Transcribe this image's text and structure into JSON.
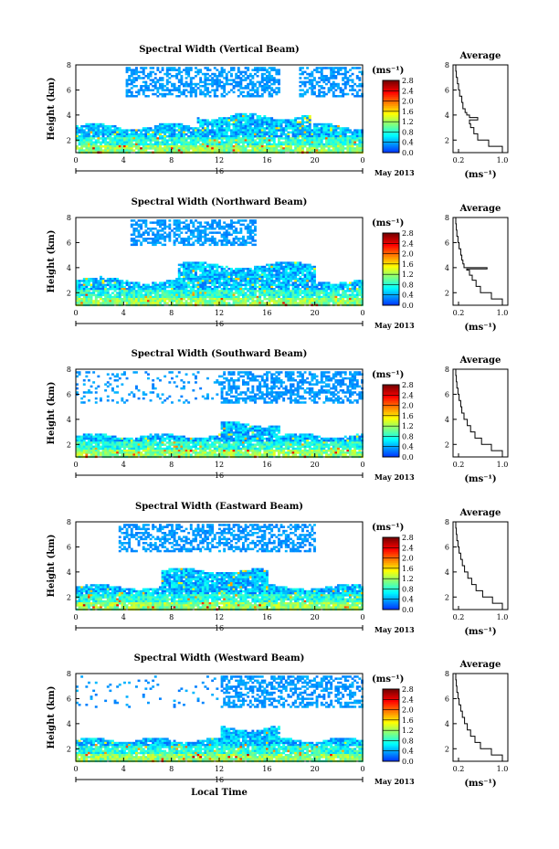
{
  "chart_data": [
    {
      "type": "heatmap",
      "title": "Spectral Width (Vertical Beam)",
      "xlabel": "",
      "ylabel": "Height (km)",
      "xlim": [
        0,
        24
      ],
      "ylim": [
        1,
        8
      ],
      "x_ticks": [
        "0",
        "4",
        "8",
        "12",
        "16",
        "20",
        "0"
      ],
      "y_ticks": [
        "2",
        "4",
        "6",
        "8"
      ],
      "date_label": "16",
      "month_label": "May 2013",
      "colorbar": {
        "unit": "(ms⁻¹)",
        "ticks": [
          "0.0",
          "0.4",
          "0.8",
          "1.2",
          "1.6",
          "2.0",
          "2.4",
          "2.8"
        ],
        "range": [
          0,
          2.8
        ]
      },
      "profile": {
        "title": "Average",
        "xlabel": "(ms⁻¹)",
        "x_ticks": [
          "0.2",
          "1.0"
        ],
        "y_ticks": [
          "2",
          "4",
          "6",
          "8"
        ],
        "xlim": [
          0.1,
          1.1
        ],
        "ylim": [
          1,
          8
        ],
        "heights": [
          1.0,
          1.5,
          2.0,
          2.5,
          3.0,
          3.3,
          3.6,
          3.8,
          4.0,
          4.2,
          4.5,
          5.0,
          5.5,
          6.0,
          6.5,
          7.0,
          7.5,
          8.0
        ],
        "values": [
          1.0,
          0.75,
          0.55,
          0.48,
          0.42,
          0.4,
          0.55,
          0.4,
          0.35,
          0.32,
          0.28,
          0.26,
          0.22,
          0.2,
          0.18,
          0.16,
          0.15,
          0.14
        ]
      }
    },
    {
      "type": "heatmap",
      "title": "Spectral Width (Northward Beam)",
      "xlabel": "",
      "ylabel": "Height (km)",
      "xlim": [
        0,
        24
      ],
      "ylim": [
        1,
        8
      ],
      "x_ticks": [
        "0",
        "4",
        "8",
        "12",
        "16",
        "20",
        "0"
      ],
      "y_ticks": [
        "2",
        "4",
        "6",
        "8"
      ],
      "date_label": "16",
      "month_label": "May 2013",
      "colorbar": {
        "unit": "(ms⁻¹)",
        "ticks": [
          "0.0",
          "0.4",
          "0.8",
          "1.2",
          "1.6",
          "2.0",
          "2.4",
          "2.8"
        ],
        "range": [
          0,
          2.8
        ]
      },
      "profile": {
        "title": "Average",
        "xlabel": "(ms⁻¹)",
        "x_ticks": [
          "0.2",
          "1.0"
        ],
        "y_ticks": [
          "2",
          "4",
          "6",
          "8"
        ],
        "xlim": [
          0.1,
          1.1
        ],
        "ylim": [
          1,
          8
        ],
        "heights": [
          1.0,
          1.5,
          2.0,
          2.5,
          3.0,
          3.4,
          3.8,
          3.9,
          4.0,
          4.3,
          4.6,
          5.0,
          5.5,
          6.0,
          6.5,
          7.0,
          7.5,
          8.0
        ],
        "values": [
          1.0,
          0.8,
          0.6,
          0.52,
          0.45,
          0.4,
          0.35,
          0.72,
          0.3,
          0.28,
          0.26,
          0.24,
          0.21,
          0.19,
          0.17,
          0.16,
          0.15,
          0.14
        ]
      }
    },
    {
      "type": "heatmap",
      "title": "Spectral Width (Southward Beam)",
      "xlabel": "",
      "ylabel": "Height (km)",
      "xlim": [
        0,
        24
      ],
      "ylim": [
        1,
        8
      ],
      "x_ticks": [
        "0",
        "4",
        "8",
        "12",
        "16",
        "20",
        "0"
      ],
      "y_ticks": [
        "2",
        "4",
        "6",
        "8"
      ],
      "date_label": "16",
      "month_label": "May 2013",
      "colorbar": {
        "unit": "(ms⁻¹)",
        "ticks": [
          "0.0",
          "0.4",
          "0.8",
          "1.2",
          "1.6",
          "2.0",
          "2.4",
          "2.8"
        ],
        "range": [
          0,
          2.8
        ]
      },
      "profile": {
        "title": "Average",
        "xlabel": "(ms⁻¹)",
        "x_ticks": [
          "0.2",
          "1.0"
        ],
        "y_ticks": [
          "2",
          "4",
          "6",
          "8"
        ],
        "xlim": [
          0.1,
          1.1
        ],
        "ylim": [
          1,
          8
        ],
        "heights": [
          1.0,
          1.5,
          2.0,
          2.5,
          3.0,
          3.5,
          4.0,
          4.5,
          5.0,
          5.5,
          6.0,
          6.5,
          7.0,
          7.5,
          8.0
        ],
        "values": [
          1.0,
          0.8,
          0.62,
          0.5,
          0.42,
          0.36,
          0.3,
          0.26,
          0.24,
          0.21,
          0.19,
          0.17,
          0.16,
          0.15,
          0.14
        ]
      }
    },
    {
      "type": "heatmap",
      "title": "Spectral Width (Eastward Beam)",
      "xlabel": "",
      "ylabel": "Height (km)",
      "xlim": [
        0,
        24
      ],
      "ylim": [
        1,
        8
      ],
      "x_ticks": [
        "0",
        "4",
        "8",
        "12",
        "16",
        "20",
        "0"
      ],
      "y_ticks": [
        "2",
        "4",
        "6",
        "8"
      ],
      "date_label": "16",
      "month_label": "May 2013",
      "colorbar": {
        "unit": "(ms⁻¹)",
        "ticks": [
          "0.0",
          "0.4",
          "0.8",
          "1.2",
          "1.6",
          "2.0",
          "2.4",
          "2.8"
        ],
        "range": [
          0,
          2.8
        ]
      },
      "profile": {
        "title": "Average",
        "xlabel": "(ms⁻¹)",
        "x_ticks": [
          "0.2",
          "1.0"
        ],
        "y_ticks": [
          "2",
          "4",
          "6",
          "8"
        ],
        "xlim": [
          0.1,
          1.1
        ],
        "ylim": [
          1,
          8
        ],
        "heights": [
          1.0,
          1.5,
          2.0,
          2.5,
          3.0,
          3.5,
          4.0,
          4.5,
          5.0,
          5.5,
          6.0,
          6.5,
          7.0,
          7.5,
          8.0
        ],
        "values": [
          1.0,
          0.82,
          0.64,
          0.52,
          0.44,
          0.37,
          0.31,
          0.27,
          0.24,
          0.21,
          0.19,
          0.17,
          0.16,
          0.15,
          0.14
        ]
      }
    },
    {
      "type": "heatmap",
      "title": "Spectral Width (Westward Beam)",
      "xlabel": "Local Time",
      "ylabel": "Height (km)",
      "xlim": [
        0,
        24
      ],
      "ylim": [
        1,
        8
      ],
      "x_ticks": [
        "0",
        "4",
        "8",
        "12",
        "16",
        "20",
        "0"
      ],
      "y_ticks": [
        "2",
        "4",
        "6",
        "8"
      ],
      "date_label": "16",
      "month_label": "May 2013",
      "colorbar": {
        "unit": "(ms⁻¹)",
        "ticks": [
          "0.0",
          "0.4",
          "0.8",
          "1.2",
          "1.6",
          "2.0",
          "2.4",
          "2.8"
        ],
        "range": [
          0,
          2.8
        ]
      },
      "profile": {
        "title": "Average",
        "xlabel": "(ms⁻¹)",
        "x_ticks": [
          "0.2",
          "1.0"
        ],
        "y_ticks": [
          "2",
          "4",
          "6",
          "8"
        ],
        "xlim": [
          0.1,
          1.1
        ],
        "ylim": [
          1,
          8
        ],
        "heights": [
          1.0,
          1.5,
          2.0,
          2.5,
          3.0,
          3.5,
          4.0,
          4.5,
          5.0,
          5.5,
          6.0,
          6.5,
          7.0,
          7.5,
          8.0
        ],
        "values": [
          1.0,
          0.8,
          0.6,
          0.5,
          0.42,
          0.36,
          0.31,
          0.27,
          0.24,
          0.21,
          0.19,
          0.17,
          0.16,
          0.15,
          0.14
        ]
      }
    }
  ]
}
